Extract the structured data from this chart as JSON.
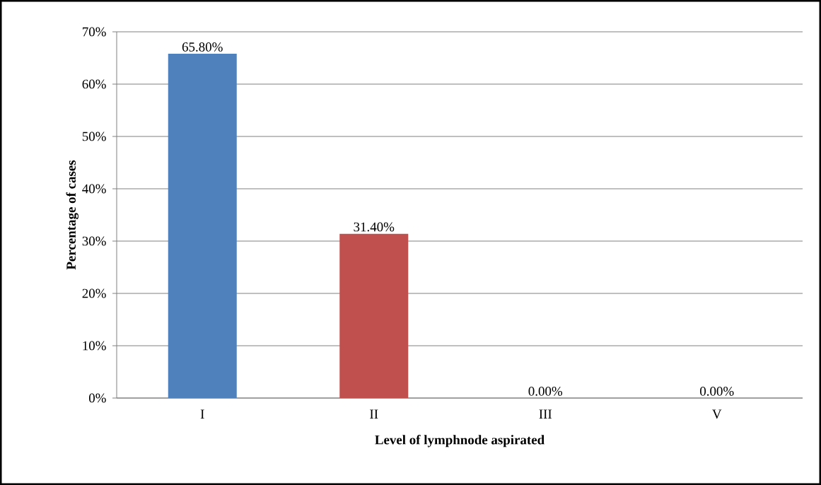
{
  "chart_data": {
    "type": "bar",
    "xlabel": "Level of lymphnode aspirated",
    "ylabel": "Percentage of cases",
    "categories": [
      "I",
      "II",
      "III",
      "V"
    ],
    "values": [
      65.8,
      31.4,
      0,
      0
    ],
    "colors": [
      "#4f81bd",
      "#c0504d",
      "#9bbb59",
      "#8064a2"
    ],
    "value_labels": [
      "65.80%",
      "31.40%",
      "0.00%",
      "0.00%"
    ],
    "ylim": [
      0,
      70
    ],
    "yticks": [
      {
        "value": 0,
        "label": "0%"
      },
      {
        "value": 10,
        "label": "10%"
      },
      {
        "value": 20,
        "label": "20%"
      },
      {
        "value": 30,
        "label": "30%"
      },
      {
        "value": 40,
        "label": "40%"
      },
      {
        "value": 50,
        "label": "50%"
      },
      {
        "value": 60,
        "label": "60%"
      },
      {
        "value": 70,
        "label": "70%"
      }
    ],
    "grid": "y"
  }
}
